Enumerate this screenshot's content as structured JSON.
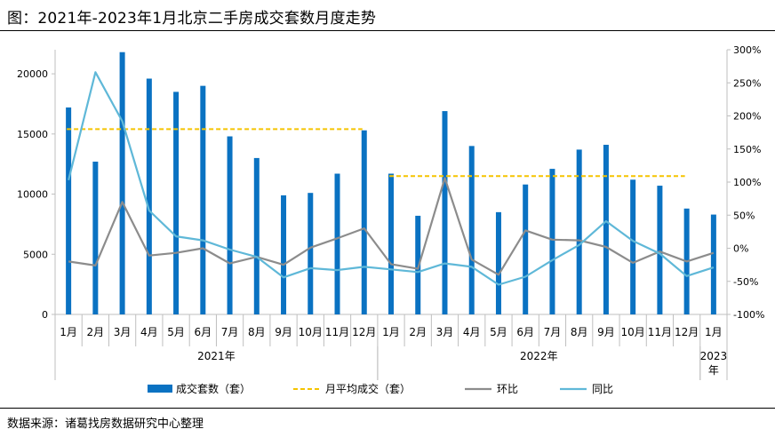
{
  "title": "图：2021年-2023年1月北京二手房成交套数月度走势",
  "source": "数据来源：诸葛找房数据研究中心整理",
  "colors": {
    "bar": "#0a72c2",
    "avg": "#f5c400",
    "mom": "#8c8c8c",
    "yoy": "#5fb8d8",
    "axis": "#bfbfbf"
  },
  "chart_data": {
    "type": "bar",
    "categories": [
      "1月",
      "2月",
      "3月",
      "4月",
      "5月",
      "6月",
      "7月",
      "8月",
      "9月",
      "10月",
      "11月",
      "12月",
      "1月",
      "2月",
      "3月",
      "4月",
      "5月",
      "6月",
      "7月",
      "8月",
      "9月",
      "10月",
      "11月",
      "12月",
      "1月"
    ],
    "year_groups": [
      {
        "label": "2021年",
        "start": 0,
        "end": 11
      },
      {
        "label": "2022年",
        "start": 12,
        "end": 23
      },
      {
        "label": "2023年",
        "start": 24,
        "end": 24
      }
    ],
    "ylim": [
      0,
      22000
    ],
    "yticks": [
      "0",
      "5000",
      "10000",
      "15000",
      "20000"
    ],
    "yticks_values": [
      0,
      5000,
      10000,
      15000,
      20000
    ],
    "y2lim": [
      -100,
      300
    ],
    "y2ticks": [
      "-100%",
      "-50%",
      "0%",
      "50%",
      "100%",
      "150%",
      "200%",
      "250%",
      "300%"
    ],
    "y2ticks_values": [
      -100,
      -50,
      0,
      50,
      100,
      150,
      200,
      250,
      300
    ],
    "legend": [
      "成交套数（套）",
      "月平均成交（套）",
      "环比",
      "同比"
    ],
    "legend_position": "bottom",
    "series": [
      {
        "name": "成交套数（套）",
        "type": "bar",
        "axis": "left",
        "values": [
          17200,
          12700,
          21800,
          19600,
          18500,
          19000,
          14800,
          13000,
          9900,
          10100,
          11700,
          15300,
          11700,
          8200,
          16900,
          14000,
          8500,
          10800,
          12100,
          13700,
          14100,
          11200,
          10700,
          8800,
          8300
        ]
      },
      {
        "name": "月平均成交（套）",
        "type": "dashed",
        "axis": "left",
        "segments": [
          {
            "start": 0,
            "end": 11,
            "value": 15400
          },
          {
            "start": 12,
            "end": 23,
            "value": 11500
          }
        ]
      },
      {
        "name": "环比",
        "type": "line",
        "axis": "right",
        "values": [
          -20,
          -26,
          70,
          -11,
          -7,
          0,
          -23,
          -13,
          -25,
          1,
          15,
          30,
          -24,
          -31,
          106,
          -17,
          -40,
          27,
          13,
          12,
          2,
          -22,
          -5,
          -20,
          -7
        ]
      },
      {
        "name": "同比",
        "type": "line",
        "axis": "right",
        "values": [
          103,
          266,
          192,
          57,
          18,
          12,
          -2,
          -13,
          -44,
          -30,
          -33,
          -28,
          -32,
          -36,
          -23,
          -28,
          -55,
          -43,
          -18,
          5,
          41,
          11,
          -8,
          -42,
          -29
        ]
      }
    ]
  }
}
